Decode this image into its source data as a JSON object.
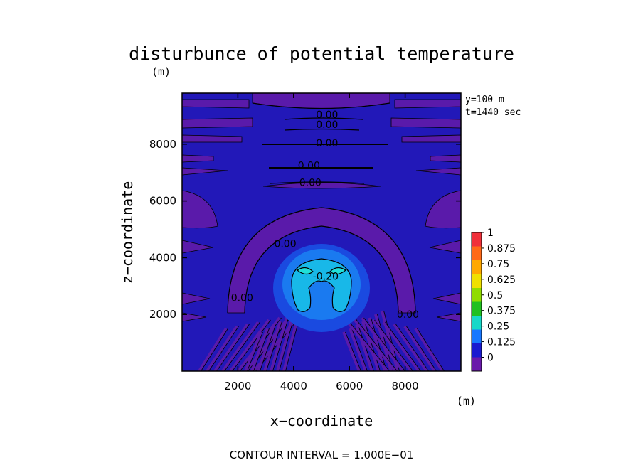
{
  "chart_data": {
    "type": "heatmap",
    "title": "disturbunce of potential temperature",
    "title_unit": "(m)",
    "xlabel": "x−coordinate",
    "ylabel": "z−coordinate",
    "x_unit": "(m)",
    "xlim": [
      0,
      10000
    ],
    "ylim": [
      0,
      9800
    ],
    "x_ticks": [
      2000,
      4000,
      6000,
      8000
    ],
    "y_ticks": [
      2000,
      4000,
      6000,
      8000
    ],
    "x_tick_labels": [
      "2000",
      "4000",
      "6000",
      "8000"
    ],
    "y_tick_labels": [
      "2000",
      "4000",
      "6000",
      "8000"
    ],
    "info_lines": [
      "y=100 m",
      "t=1440 sec"
    ],
    "footer": "CONTOUR INTERVAL = 1.000E−01",
    "colorbar": {
      "labels": [
        "1",
        "0.875",
        "0.75",
        "0.625",
        "0.5",
        "0.375",
        "0.25",
        "0.125",
        "0"
      ],
      "colors": [
        "#f0303a",
        "#ff6a18",
        "#ffa800",
        "#f0e000",
        "#90dc00",
        "#20c020",
        "#18d8c8",
        "#1878ff",
        "#1a1ad0",
        "#6a1aaa"
      ]
    },
    "field_colors": {
      "background": "#2218b8",
      "negative_band": "#5a1aaa",
      "bubble_outer": "#1a4ae0",
      "bubble_mid": "#1a7af0",
      "bubble_inner": "#18b8e8",
      "bubble_core": "#20e0d8"
    },
    "contour_labels": [
      {
        "text": "0.00",
        "x": 5200,
        "z": 9050
      },
      {
        "text": "0.00",
        "x": 5200,
        "z": 8700
      },
      {
        "text": "0.00",
        "x": 5200,
        "z": 8050
      },
      {
        "text": "0.00",
        "x": 4550,
        "z": 7250
      },
      {
        "text": "0.00",
        "x": 4600,
        "z": 6650
      },
      {
        "text": "0.00",
        "x": 3700,
        "z": 4500
      },
      {
        "text": "-0.20",
        "x": 5150,
        "z": 3350
      },
      {
        "text": "0.00",
        "x": 2150,
        "z": 2600
      },
      {
        "text": "0.00",
        "x": 8100,
        "z": 2000
      }
    ]
  }
}
